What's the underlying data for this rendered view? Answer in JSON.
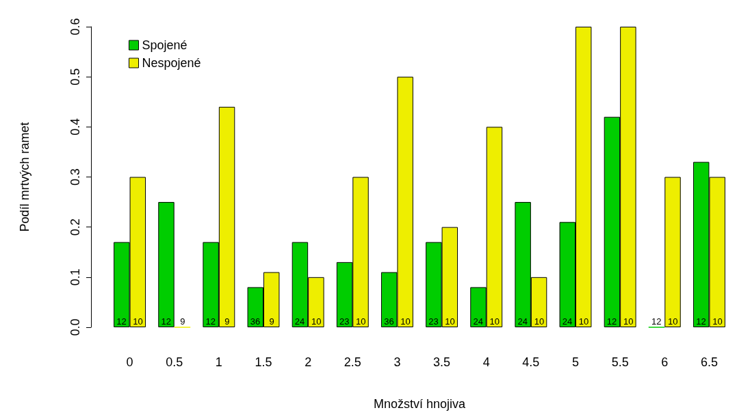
{
  "chart_data": {
    "type": "bar",
    "xlabel": "Množství hnojiva",
    "ylabel": "Podíl mrtvých ramet",
    "categories": [
      "0",
      "0.5",
      "1",
      "1.5",
      "2",
      "2.5",
      "3",
      "3.5",
      "4",
      "4.5",
      "5",
      "5.5",
      "6",
      "6.5"
    ],
    "series": [
      {
        "name": "Spojené",
        "color": "#00cd00",
        "values": [
          0.17,
          0.25,
          0.17,
          0.08,
          0.17,
          0.13,
          0.11,
          0.17,
          0.08,
          0.25,
          0.21,
          0.42,
          0,
          0.33
        ]
      },
      {
        "name": "Nespojené",
        "color": "#eeee00",
        "values": [
          0.3,
          0,
          0.44,
          0.11,
          0.1,
          0.3,
          0.5,
          0.2,
          0.4,
          0.1,
          0.6,
          0.6,
          0.3,
          0.3
        ]
      }
    ],
    "annotations": [
      {
        "text": "12",
        "x": "0",
        "y": 0
      },
      {
        "text": "10",
        "x": "0",
        "y": 0
      },
      {
        "text": "12",
        "x": "0.5",
        "y": 0
      },
      {
        "text": "9",
        "x": "0.5",
        "y": 0
      },
      {
        "text": "12",
        "x": "1",
        "y": 0
      },
      {
        "text": "9",
        "x": "1",
        "y": 0
      },
      {
        "text": "36",
        "x": "1.5",
        "y": 0
      },
      {
        "text": "9",
        "x": "1.5",
        "y": 0
      },
      {
        "text": "24",
        "x": "2",
        "y": 0
      },
      {
        "text": "10",
        "x": "2",
        "y": 0
      },
      {
        "text": "23",
        "x": "2.5",
        "y": 0
      },
      {
        "text": "10",
        "x": "2.5",
        "y": 0
      },
      {
        "text": "36",
        "x": "3",
        "y": 0
      },
      {
        "text": "10",
        "x": "3",
        "y": 0
      },
      {
        "text": "23",
        "x": "3.5",
        "y": 0
      },
      {
        "text": "10",
        "x": "3.5",
        "y": 0
      },
      {
        "text": "24",
        "x": "4",
        "y": 0
      },
      {
        "text": "10",
        "x": "4",
        "y": 0
      },
      {
        "text": "24",
        "x": "4.5",
        "y": 0
      },
      {
        "text": "10",
        "x": "4.5",
        "y": 0
      },
      {
        "text": "24",
        "x": "5",
        "y": 0
      },
      {
        "text": "10",
        "x": "5",
        "y": 0
      },
      {
        "text": "12",
        "x": "5.5",
        "y": 0
      },
      {
        "text": "10",
        "x": "5.5",
        "y": 0
      },
      {
        "text": "12",
        "x": "6",
        "y": 0
      },
      {
        "text": "10",
        "x": "6",
        "y": 0
      },
      {
        "text": "12",
        "x": "6.5",
        "y": 0
      },
      {
        "text": "10",
        "x": "6.5",
        "y": 0
      }
    ],
    "ylim": [
      0,
      0.6
    ],
    "yticks": [
      {
        "value": 0,
        "label": "0.0"
      },
      {
        "value": 0.1,
        "label": "0.1"
      },
      {
        "value": 0.2,
        "label": "0.2"
      },
      {
        "value": 0.3,
        "label": "0.3"
      },
      {
        "value": 0.4,
        "label": "0.4"
      },
      {
        "value": 0.5,
        "label": "0.5"
      },
      {
        "value": 0.6,
        "label": "0.6"
      }
    ],
    "grid": false,
    "legend": "top left"
  }
}
